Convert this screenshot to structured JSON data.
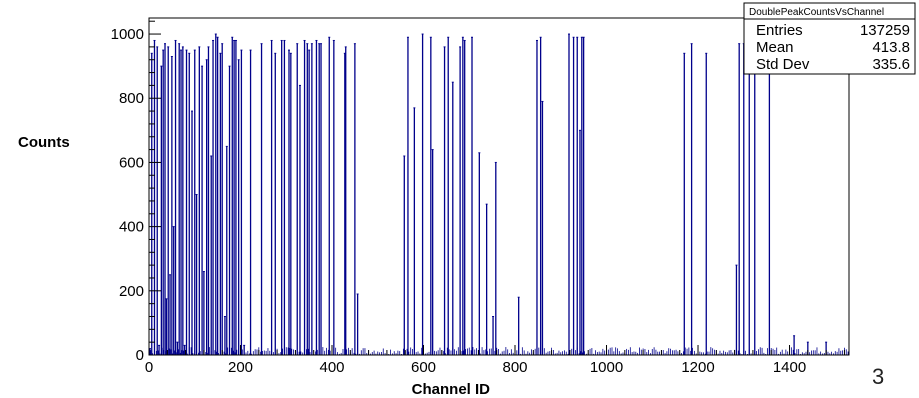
{
  "chart_data": {
    "type": "bar",
    "xlabel": "Channel ID",
    "ylabel": "Counts",
    "xlim": [
      0,
      1530
    ],
    "ylim": [
      0,
      1050
    ],
    "x_ticks": [
      0,
      200,
      400,
      600,
      800,
      1000,
      1200,
      1400
    ],
    "y_ticks": [
      0,
      200,
      400,
      600,
      800,
      1000
    ],
    "grid": false,
    "bar_color": "#00008b",
    "series": [
      {
        "x": [
          2,
          6,
          12,
          18,
          22,
          27,
          31,
          35,
          38,
          42,
          46,
          50,
          54,
          58,
          62,
          66,
          70,
          74,
          78,
          82,
          88,
          94,
          100,
          104,
          110,
          116,
          120,
          126,
          130,
          136,
          140,
          146,
          150,
          156,
          160,
          166,
          170,
          176,
          182,
          186,
          190,
          196,
          202,
          208,
          222,
          246,
          268,
          276,
          290,
          296,
          306,
          310,
          324,
          330,
          340,
          346,
          350,
          356,
          366,
          372,
          376,
          394,
          404,
          428,
          430,
          450,
          456,
          558,
          566,
          580,
          598,
          616,
          620,
          646,
          654,
          664,
          680,
          686,
          690,
          706,
          722,
          738,
          752,
          758,
          808,
          848,
          856,
          860,
          918,
          928,
          936,
          942,
          946,
          950,
          1170,
          1186,
          1218,
          1284,
          1290,
          1300,
          1312,
          1324,
          1356,
          1410,
          1440,
          1480
        ],
        "values": [
          20,
          940,
          980,
          960,
          30,
          900,
          950,
          970,
          175,
          960,
          250,
          930,
          400,
          980,
          40,
          970,
          950,
          960,
          30,
          950,
          940,
          760,
          950,
          500,
          960,
          900,
          260,
          920,
          960,
          620,
          980,
          1000,
          990,
          940,
          970,
          120,
          650,
          900,
          990,
          980,
          980,
          920,
          950,
          30,
          950,
          970,
          980,
          940,
          980,
          980,
          950,
          940,
          970,
          840,
          980,
          970,
          950,
          970,
          980,
          970,
          970,
          990,
          980,
          940,
          960,
          970,
          190,
          620,
          990,
          770,
          1000,
          990,
          640,
          960,
          990,
          850,
          960,
          990,
          980,
          990,
          630,
          470,
          120,
          600,
          180,
          980,
          990,
          790,
          1000,
          990,
          990,
          700,
          990,
          990,
          940,
          970,
          940,
          280,
          970,
          970,
          990,
          980,
          970,
          60,
          40,
          40
        ]
      }
    ],
    "legend": "top-right",
    "stats": {
      "title": "DoublePeakCountsVsChannel",
      "entries_label": "Entries",
      "entries_value": "137259",
      "mean_label": "Mean",
      "mean_value": "413.8",
      "std_label": "Std Dev",
      "std_value": "335.6"
    }
  },
  "page_number": "3"
}
